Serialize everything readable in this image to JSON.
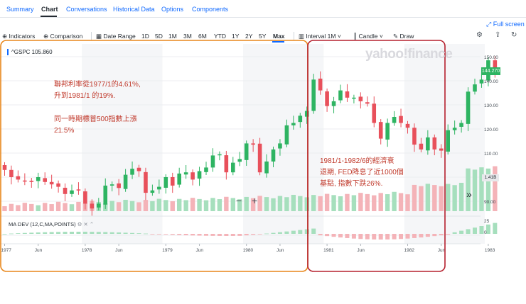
{
  "tabs": [
    "Summary",
    "Chart",
    "Conversations",
    "Historical Data",
    "Options",
    "Components"
  ],
  "active_tab": "Chart",
  "fullscreen_label": "Full screen",
  "toolbar": {
    "indicators": "Indicators",
    "comparison": "Comparison",
    "date_range": "Date Range",
    "ranges": [
      "1D",
      "5D",
      "1M",
      "3M",
      "6M",
      "YTD",
      "1Y",
      "2Y",
      "5Y",
      "Max"
    ],
    "selected_range": "Max",
    "interval": "Interval",
    "interval_value": "1M",
    "chart_type": "Candle",
    "draw": "Draw"
  },
  "chart": {
    "ticker_label": "^GSPC 105.860",
    "watermark": "yahoo!finance",
    "current_price": "144.270",
    "volume_badge": "1.41B",
    "indicator_label": "MA DEV (12,C,MA,POINTS)",
    "zoom_out": "−",
    "zoom_in": "+",
    "scroll_right": "»"
  },
  "annotations": {
    "left": [
      "聯邦利率從1977/1的4.61%,",
      "升到1981/1 的19%.",
      "同一時期標普500指數上漲",
      "21.5%"
    ],
    "right": [
      "1981/1-1982/6的經濟衰",
      "退期, FED降息了近1000個",
      "基點, 指數下跌26%."
    ]
  },
  "colors": {
    "up": "#2eb462",
    "down": "#e8505b",
    "accent": "#0f69ff",
    "annotation": "#c0392b",
    "box_left": "#e8861a",
    "box_right": "#b5202e"
  },
  "chart_data": {
    "type": "candlestick",
    "interval": "1M",
    "x_ticks": [
      "1977",
      "Jun",
      "1978",
      "Jun",
      "1979",
      "Jun",
      "1980",
      "Jun",
      "1981",
      "Jun",
      "1982",
      "Jun",
      "1983"
    ],
    "y_ticks": [
      90,
      100,
      110,
      120,
      130,
      140,
      150
    ],
    "ylim": [
      88,
      152
    ],
    "indicator_ticks": [
      25,
      0
    ],
    "last_close": 144.27,
    "closes": [
      103,
      100,
      99,
      98.5,
      98,
      100,
      98,
      97,
      96,
      93,
      94.5,
      94.5,
      89,
      87,
      89,
      96.5,
      97,
      95.5,
      101,
      103.5,
      102.5,
      93.5,
      94.5,
      96,
      100,
      96.5,
      101.5,
      102,
      99,
      102.5,
      104,
      109,
      109.5,
      102,
      106,
      107.5,
      114,
      113.5,
      102,
      106.5,
      111.5,
      114,
      121.5,
      122.5,
      125.5,
      127.5,
      140.5,
      136,
      129.5,
      131.5,
      136,
      133,
      133,
      131.5,
      130.5,
      122.5,
      116,
      122.5,
      125,
      122.5,
      120.5,
      113.5,
      111.5,
      116.5,
      111.5,
      111,
      119.5,
      120.5,
      122.5,
      135.5,
      138.5,
      140.5,
      148.5,
      144.3
    ],
    "volume_trend": "rising",
    "ma_dev_trend": "positive to 1980/11, negative through 1982/7, positive after"
  }
}
